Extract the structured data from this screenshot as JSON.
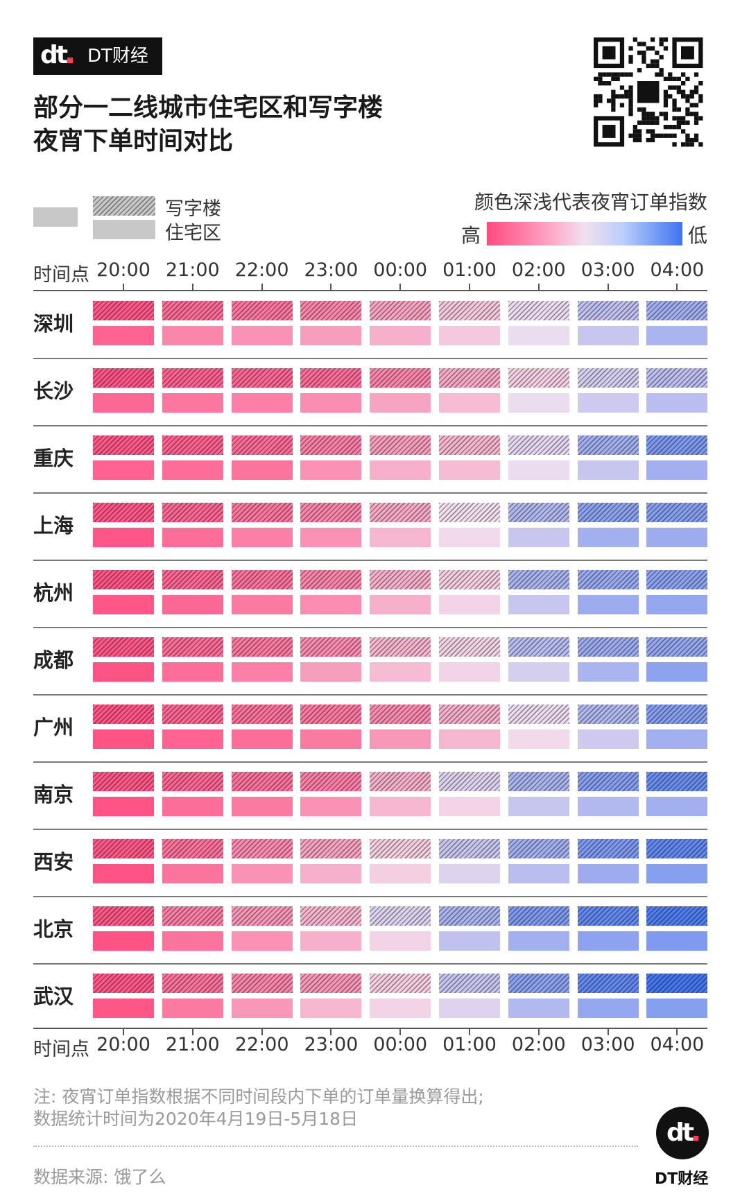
{
  "brand": {
    "logo_mark": "dt",
    "name": "DT财经"
  },
  "title_line1": "部分一二线城市住宅区和写字楼",
  "title_line2": "夜宵下单时间对比",
  "legend": {
    "office": "写字楼",
    "residential": "住宅区",
    "color_note": "颜色深浅代表夜宵订单指数",
    "high": "高",
    "low": "低"
  },
  "chart_data": {
    "type": "heatmap",
    "x_axis_label": "时间点",
    "times": [
      "20:00",
      "21:00",
      "22:00",
      "23:00",
      "00:00",
      "01:00",
      "02:00",
      "03:00",
      "04:00"
    ],
    "series_labels": [
      "写字楼",
      "住宅区"
    ],
    "color_scale": {
      "high": "#ff4a7e",
      "mid": "#f2e0ef",
      "low": "#3f73ef"
    },
    "scale_note": "index 1 = 高 (highest), 0 = 低 (lowest); values estimated from color intensity",
    "rows": [
      {
        "city": "深圳",
        "office": [
          0.95,
          0.88,
          0.85,
          0.8,
          0.7,
          0.58,
          0.48,
          0.36,
          0.28
        ],
        "residential": [
          0.92,
          0.8,
          0.76,
          0.72,
          0.66,
          0.58,
          0.48,
          0.38,
          0.3
        ]
      },
      {
        "city": "长沙",
        "office": [
          0.96,
          0.92,
          0.9,
          0.88,
          0.8,
          0.68,
          0.55,
          0.42,
          0.35
        ],
        "residential": [
          0.9,
          0.85,
          0.82,
          0.78,
          0.7,
          0.62,
          0.48,
          0.4,
          0.34
        ]
      },
      {
        "city": "重庆",
        "office": [
          0.95,
          0.92,
          0.88,
          0.82,
          0.72,
          0.64,
          0.46,
          0.28,
          0.18
        ],
        "residential": [
          0.92,
          0.88,
          0.86,
          0.76,
          0.66,
          0.62,
          0.48,
          0.38,
          0.28
        ]
      },
      {
        "city": "上海",
        "office": [
          0.95,
          0.9,
          0.85,
          0.8,
          0.68,
          0.5,
          0.32,
          0.22,
          0.2
        ],
        "residential": [
          0.96,
          0.88,
          0.82,
          0.76,
          0.64,
          0.52,
          0.38,
          0.28,
          0.26
        ]
      },
      {
        "city": "杭州",
        "office": [
          0.96,
          0.9,
          0.86,
          0.8,
          0.66,
          0.56,
          0.3,
          0.25,
          0.22
        ],
        "residential": [
          0.96,
          0.9,
          0.84,
          0.78,
          0.66,
          0.54,
          0.38,
          0.26,
          0.24
        ]
      },
      {
        "city": "成都",
        "office": [
          0.95,
          0.88,
          0.84,
          0.78,
          0.64,
          0.54,
          0.34,
          0.26,
          0.24
        ],
        "residential": [
          0.97,
          0.88,
          0.82,
          0.72,
          0.62,
          0.54,
          0.42,
          0.3,
          0.22
        ]
      },
      {
        "city": "广州",
        "office": [
          0.96,
          0.9,
          0.86,
          0.84,
          0.78,
          0.66,
          0.48,
          0.32,
          0.2
        ],
        "residential": [
          0.97,
          0.92,
          0.88,
          0.84,
          0.74,
          0.64,
          0.52,
          0.4,
          0.28
        ]
      },
      {
        "city": "南京",
        "office": [
          0.95,
          0.9,
          0.86,
          0.82,
          0.66,
          0.44,
          0.3,
          0.2,
          0.12
        ],
        "residential": [
          0.97,
          0.88,
          0.84,
          0.76,
          0.64,
          0.54,
          0.38,
          0.32,
          0.28
        ]
      },
      {
        "city": "西安",
        "office": [
          0.95,
          0.86,
          0.78,
          0.7,
          0.56,
          0.38,
          0.28,
          0.18,
          0.1
        ],
        "residential": [
          0.97,
          0.86,
          0.76,
          0.66,
          0.56,
          0.44,
          0.34,
          0.26,
          0.2
        ]
      },
      {
        "city": "北京",
        "office": [
          0.95,
          0.82,
          0.74,
          0.64,
          0.44,
          0.3,
          0.18,
          0.1,
          0.05
        ],
        "residential": [
          0.97,
          0.86,
          0.76,
          0.66,
          0.54,
          0.36,
          0.28,
          0.22,
          0.18
        ]
      },
      {
        "city": "武汉",
        "office": [
          0.95,
          0.86,
          0.8,
          0.74,
          0.56,
          0.38,
          0.22,
          0.1,
          0.02
        ],
        "residential": [
          0.96,
          0.84,
          0.74,
          0.64,
          0.54,
          0.44,
          0.32,
          0.24,
          0.2
        ]
      }
    ]
  },
  "note_line1": "注: 夜宵订单指数根据不同时间段内下单的订单量换算得出;",
  "note_line2": "数据统计时间为2020年4月19日-5月18日",
  "source": "数据来源: 饿了么",
  "footer_brand": "DT财经"
}
